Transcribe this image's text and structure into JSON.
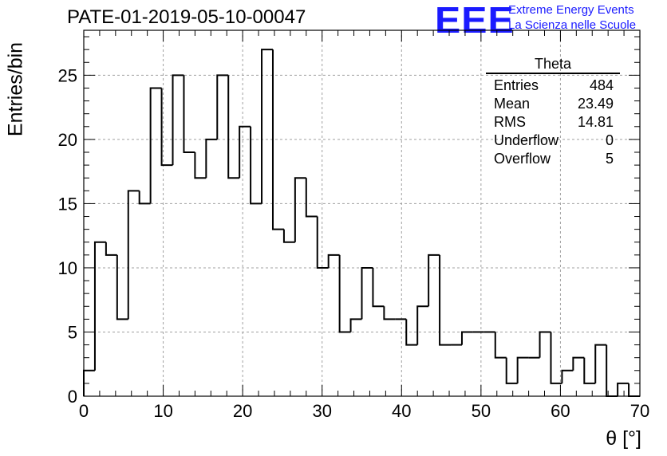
{
  "title": "PATE-01-2019-05-10-00047",
  "logo": {
    "mark": "EEE",
    "line1": "Extreme Energy Events",
    "line2": "La Scienza nelle Scuole",
    "color": "#1a1aff"
  },
  "stats_box": {
    "title": "Theta",
    "rows": [
      {
        "label": "Entries",
        "value": "484"
      },
      {
        "label": "Mean",
        "value": "23.49"
      },
      {
        "label": "RMS",
        "value": "14.81"
      },
      {
        "label": "Underflow",
        "value": "0"
      },
      {
        "label": "Overflow",
        "value": "5"
      }
    ]
  },
  "chart_data": {
    "type": "bar",
    "style": "step-histogram",
    "xlabel": "θ [°]",
    "ylabel": "Entries/bin",
    "xlim": [
      0,
      70
    ],
    "ylim": [
      0,
      28.5
    ],
    "bin_width": 1.4,
    "x_ticks": [
      0,
      10,
      20,
      30,
      40,
      50,
      60,
      70
    ],
    "y_ticks": [
      0,
      5,
      10,
      15,
      20,
      25
    ],
    "grid": true,
    "values": [
      2,
      12,
      11,
      6,
      16,
      15,
      24,
      18,
      25,
      19,
      17,
      20,
      25,
      17,
      21,
      15,
      27,
      13,
      12,
      17,
      14,
      10,
      11,
      5,
      6,
      10,
      7,
      6,
      6,
      4,
      7,
      11,
      4,
      4,
      5,
      5,
      5,
      3,
      1,
      3,
      3,
      5,
      1,
      2,
      3,
      1,
      4,
      0,
      1,
      0
    ]
  }
}
